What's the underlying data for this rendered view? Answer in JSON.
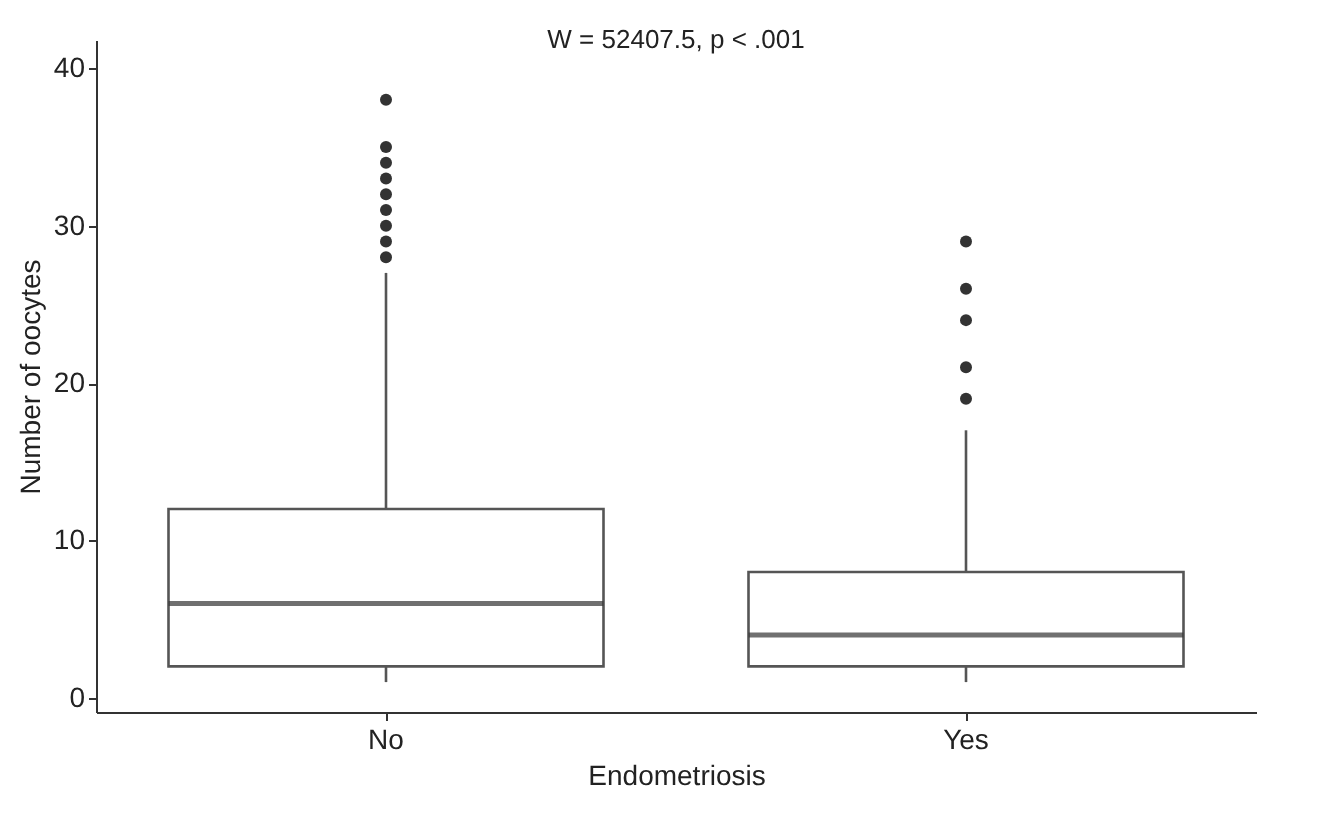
{
  "chart_data": {
    "type": "box",
    "xlabel": "Endometriosis",
    "ylabel": "Number of oocytes",
    "categories": [
      "No",
      "Yes"
    ],
    "boxes": [
      {
        "low": 1,
        "q1": 2,
        "median": 6,
        "q3": 12,
        "high": 27,
        "outliers": [
          28,
          29,
          30,
          31,
          32,
          33,
          34,
          35,
          38
        ]
      },
      {
        "low": 1,
        "q1": 2,
        "median": 4,
        "q3": 8,
        "high": 17,
        "outliers": [
          19,
          21,
          24,
          26,
          29
        ]
      }
    ],
    "ylim": [
      -0.9,
      41.8
    ],
    "yticks": [
      0,
      10,
      20,
      30,
      40
    ],
    "annotations": [
      "W = 52407.5, p < .001"
    ]
  }
}
